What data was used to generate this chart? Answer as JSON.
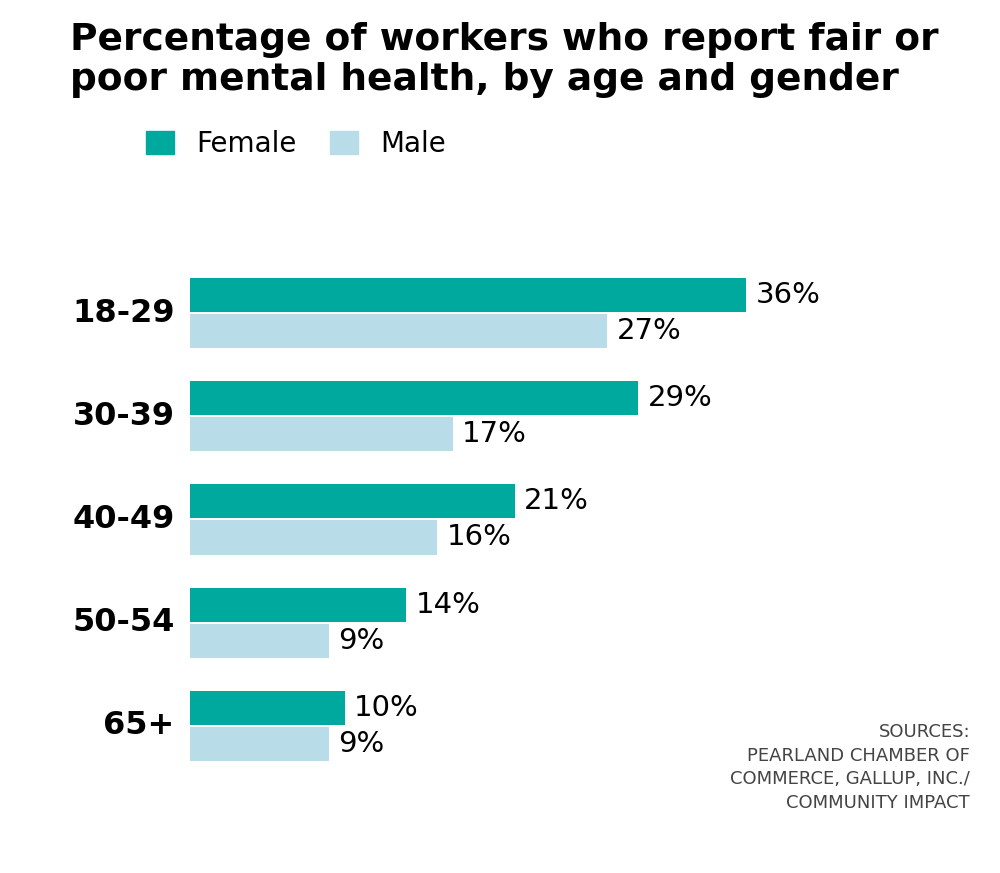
{
  "title": "Percentage of workers who report fair or\npoor mental health, by age and gender",
  "categories": [
    "18-29",
    "30-39",
    "40-49",
    "50-54",
    "65+"
  ],
  "female_values": [
    36,
    29,
    21,
    14,
    10
  ],
  "male_values": [
    27,
    17,
    16,
    9,
    9
  ],
  "female_color": "#00A99D",
  "male_color": "#B8DDE8",
  "background_color": "#ffffff",
  "title_fontsize": 27,
  "label_fontsize": 23,
  "value_fontsize": 21,
  "legend_fontsize": 20,
  "source_text": "SOURCES:\nPEARLAND CHAMBER OF\nCOMMERCE, GALLUP, INC./\nCOMMUNITY IMPACT",
  "source_fontsize": 13,
  "xlim": [
    0,
    44
  ]
}
